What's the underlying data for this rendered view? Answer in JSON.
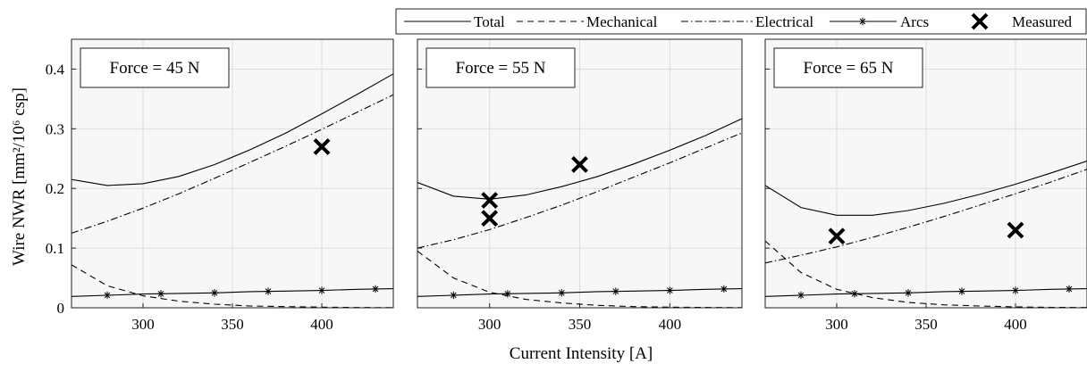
{
  "figure": {
    "ylabel": "Wire NWR [mm²/10⁶ csp]",
    "xlabel": "Current Intensity [A]"
  },
  "legend": {
    "placement": "top",
    "items": [
      {
        "label": "Total",
        "style": "solid"
      },
      {
        "label": "Mechanical",
        "style": "dashed"
      },
      {
        "label": "Electrical",
        "style": "dashdot"
      },
      {
        "label": "Arcs",
        "style": "solid-star"
      },
      {
        "label": "Measured",
        "style": "x-marker"
      }
    ]
  },
  "chart_data": [
    {
      "type": "line",
      "title": "Force = 45 N",
      "title_placement": "top-left",
      "xlim": [
        260,
        440
      ],
      "ylim": [
        0,
        0.45
      ],
      "xticks": [
        300,
        350,
        400
      ],
      "yticks": [
        0,
        0.1,
        0.2,
        0.3,
        0.4
      ],
      "ytick_labels": [
        "0",
        "0.1",
        "0.2",
        "0.3",
        "0.4"
      ],
      "grid": true,
      "x": [
        260,
        280,
        300,
        320,
        340,
        360,
        380,
        400,
        420,
        440
      ],
      "series": [
        {
          "name": "Total",
          "values": [
            0.215,
            0.205,
            0.208,
            0.22,
            0.24,
            0.265,
            0.293,
            0.325,
            0.358,
            0.392
          ]
        },
        {
          "name": "Mechanical",
          "values": [
            0.072,
            0.037,
            0.02,
            0.011,
            0.006,
            0.003,
            0.002,
            0.001,
            0.0005,
            0.0003
          ]
        },
        {
          "name": "Electrical",
          "values": [
            0.125,
            0.145,
            0.167,
            0.191,
            0.217,
            0.244,
            0.271,
            0.299,
            0.328,
            0.357
          ]
        },
        {
          "name": "Arcs",
          "values": [
            0.019,
            0.021,
            0.023,
            0.024,
            0.025,
            0.027,
            0.028,
            0.029,
            0.031,
            0.032
          ]
        }
      ],
      "arc_markers_x": [
        280,
        310,
        340,
        370,
        400,
        430
      ],
      "measured": [
        {
          "x": 400,
          "y": 0.27
        }
      ]
    },
    {
      "type": "line",
      "title": "Force = 55 N",
      "title_placement": "top-left",
      "xlim": [
        260,
        440
      ],
      "ylim": [
        0,
        0.45
      ],
      "xticks": [
        300,
        350,
        400
      ],
      "yticks": [
        0,
        0.1,
        0.2,
        0.3,
        0.4
      ],
      "grid": true,
      "x": [
        260,
        280,
        300,
        320,
        340,
        360,
        380,
        400,
        420,
        440
      ],
      "series": [
        {
          "name": "Total",
          "values": [
            0.21,
            0.187,
            0.182,
            0.189,
            0.203,
            0.22,
            0.241,
            0.264,
            0.289,
            0.317
          ]
        },
        {
          "name": "Mechanical",
          "values": [
            0.095,
            0.05,
            0.026,
            0.014,
            0.008,
            0.004,
            0.002,
            0.001,
            0.0006,
            0.0003
          ]
        },
        {
          "name": "Electrical",
          "values": [
            0.1,
            0.114,
            0.131,
            0.151,
            0.172,
            0.195,
            0.219,
            0.243,
            0.268,
            0.293
          ]
        },
        {
          "name": "Arcs",
          "values": [
            0.019,
            0.021,
            0.023,
            0.024,
            0.025,
            0.027,
            0.028,
            0.029,
            0.031,
            0.032
          ]
        }
      ],
      "arc_markers_x": [
        280,
        310,
        340,
        370,
        400,
        430
      ],
      "measured": [
        {
          "x": 300,
          "y": 0.18
        },
        {
          "x": 300,
          "y": 0.15
        },
        {
          "x": 350,
          "y": 0.24
        }
      ]
    },
    {
      "type": "line",
      "title": "Force = 65 N",
      "title_placement": "top-left",
      "xlim": [
        260,
        440
      ],
      "ylim": [
        0,
        0.45
      ],
      "xticks": [
        300,
        350,
        400
      ],
      "yticks": [
        0,
        0.1,
        0.2,
        0.3,
        0.4
      ],
      "grid": true,
      "x": [
        260,
        280,
        300,
        320,
        340,
        360,
        380,
        400,
        420,
        440
      ],
      "series": [
        {
          "name": "Total",
          "values": [
            0.205,
            0.168,
            0.155,
            0.155,
            0.163,
            0.175,
            0.19,
            0.207,
            0.226,
            0.246
          ]
        },
        {
          "name": "Mechanical",
          "values": [
            0.112,
            0.059,
            0.031,
            0.017,
            0.009,
            0.005,
            0.003,
            0.0015,
            0.0008,
            0.0004
          ]
        },
        {
          "name": "Electrical",
          "values": [
            0.075,
            0.088,
            0.102,
            0.118,
            0.135,
            0.153,
            0.172,
            0.191,
            0.211,
            0.232
          ]
        },
        {
          "name": "Arcs",
          "values": [
            0.019,
            0.021,
            0.023,
            0.024,
            0.025,
            0.027,
            0.028,
            0.029,
            0.031,
            0.032
          ]
        }
      ],
      "arc_markers_x": [
        280,
        310,
        340,
        370,
        400,
        430
      ],
      "measured": [
        {
          "x": 300,
          "y": 0.12
        },
        {
          "x": 400,
          "y": 0.13
        }
      ]
    }
  ]
}
